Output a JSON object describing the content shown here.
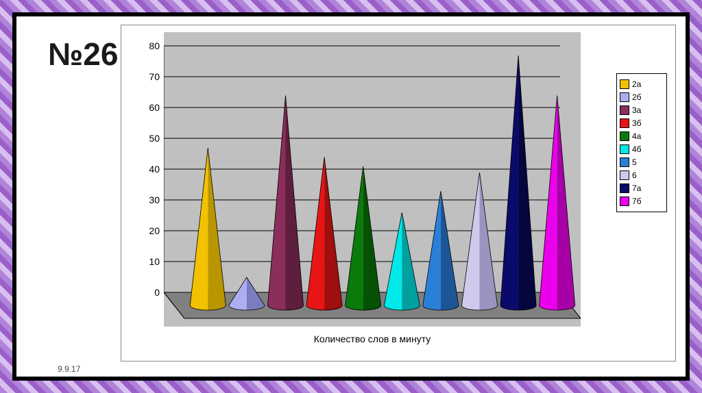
{
  "title": "№26",
  "date": "9.9.17",
  "chart": {
    "type": "cone-bar-3d",
    "x_axis_label": "Количество  слов в минуту",
    "label_fontsize": 14,
    "y": {
      "min": 0,
      "max": 80,
      "step": 10,
      "tick_labels": [
        "0",
        "10",
        "20",
        "30",
        "40",
        "50",
        "60",
        "70",
        "80"
      ]
    },
    "background_color": "#c0c0c0",
    "gridline_color": "#000000",
    "floor_color": "#808080",
    "series": [
      {
        "label": "2а",
        "value": 50,
        "color": "#f2c200",
        "shade": "#b99500"
      },
      {
        "label": "2б",
        "value": 8,
        "color": "#acaef0",
        "shade": "#7a7cc0"
      },
      {
        "label": "3а",
        "value": 67,
        "color": "#8b2e5b",
        "shade": "#5e1e3d"
      },
      {
        "label": "3б",
        "value": 47,
        "color": "#e81515",
        "shade": "#a00e0e"
      },
      {
        "label": "4а",
        "value": 44,
        "color": "#0a7a0a",
        "shade": "#055205"
      },
      {
        "label": "4б",
        "value": 29,
        "color": "#00e8e8",
        "shade": "#00a0a0"
      },
      {
        "label": "5",
        "value": 36,
        "color": "#2a7fd9",
        "shade": "#1c5696"
      },
      {
        "label": "6",
        "value": 42,
        "color": "#cfc9ec",
        "shade": "#9a95c0"
      },
      {
        "label": "7а",
        "value": 80,
        "color": "#0a0a6b",
        "shade": "#050540"
      },
      {
        "label": "7б",
        "value": 67,
        "color": "#ea00ea",
        "shade": "#a600a6"
      }
    ],
    "legend_position": "right"
  },
  "frame": {
    "outer_border_pattern_colors": [
      "#b084d9",
      "#d8bff0",
      "#9a5fc9"
    ],
    "inner_border_color": "#000000"
  }
}
